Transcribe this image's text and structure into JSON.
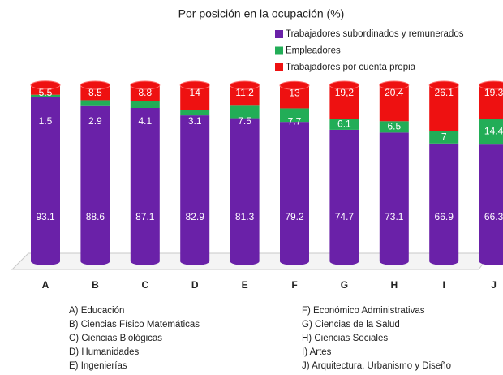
{
  "chart_data": {
    "type": "stacked-cylinder",
    "title": "Por posición en la ocupación (%)",
    "categories": [
      "A",
      "B",
      "C",
      "D",
      "E",
      "F",
      "G",
      "H",
      "I",
      "J"
    ],
    "series": [
      {
        "name": "Trabajadores subordinados y remunerados",
        "color": "#6a21a8",
        "values": [
          93.1,
          88.6,
          87.1,
          82.9,
          81.3,
          79.2,
          74.7,
          73.1,
          66.9,
          66.3
        ]
      },
      {
        "name": "Empleadores",
        "color": "#22ad57",
        "values": [
          1.5,
          2.9,
          4.1,
          3.1,
          7.5,
          7.7,
          6.1,
          6.5,
          7,
          14.4
        ]
      },
      {
        "name": "Trabajadores por cuenta propia",
        "color": "#ee1111",
        "values": [
          5.5,
          8.5,
          8.8,
          14,
          11.2,
          13,
          19.2,
          20.4,
          26.1,
          19.3
        ],
        "value_labels": [
          "5.5",
          "8.5",
          "8.8",
          "14",
          "11.2",
          "13",
          "19,2",
          "20.4",
          "26.1",
          "19.3"
        ]
      }
    ],
    "category_descriptions": [
      "A) Educación",
      "B) Ciencias Físico Matemáticas",
      "C) Ciencias Biológicas",
      "D) Humanidades",
      "E) Ingenierías",
      "F) Económico Administrativas",
      "G) Ciencias de la Salud",
      "H) Ciencias Sociales",
      "I) Artes",
      "J) Arquitectura, Urbanismo y Diseño"
    ],
    "legend": "top-right"
  }
}
